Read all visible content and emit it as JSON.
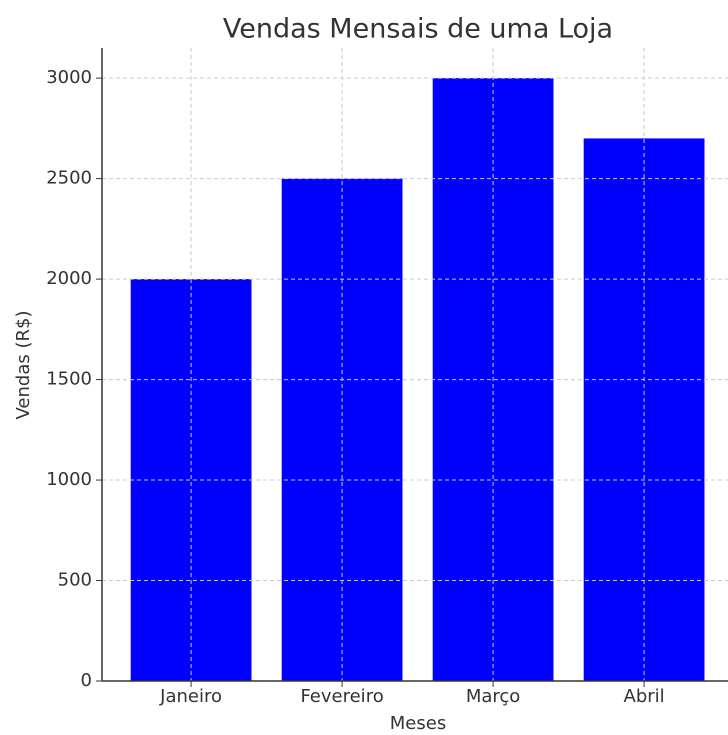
{
  "chart_data": {
    "type": "bar",
    "title": "Vendas Mensais de uma Loja",
    "x_label": "Meses",
    "y_label": "Vendas (R$)",
    "categories": [
      "Janeiro",
      "Fevereiro",
      "Março",
      "Abril"
    ],
    "values": [
      2000,
      2500,
      3000,
      2700
    ],
    "color": "#0000ff",
    "ylim": [
      0,
      3150
    ],
    "yticks": [
      0,
      500,
      1000,
      1500,
      2000,
      2500,
      3000
    ],
    "grid": true
  }
}
